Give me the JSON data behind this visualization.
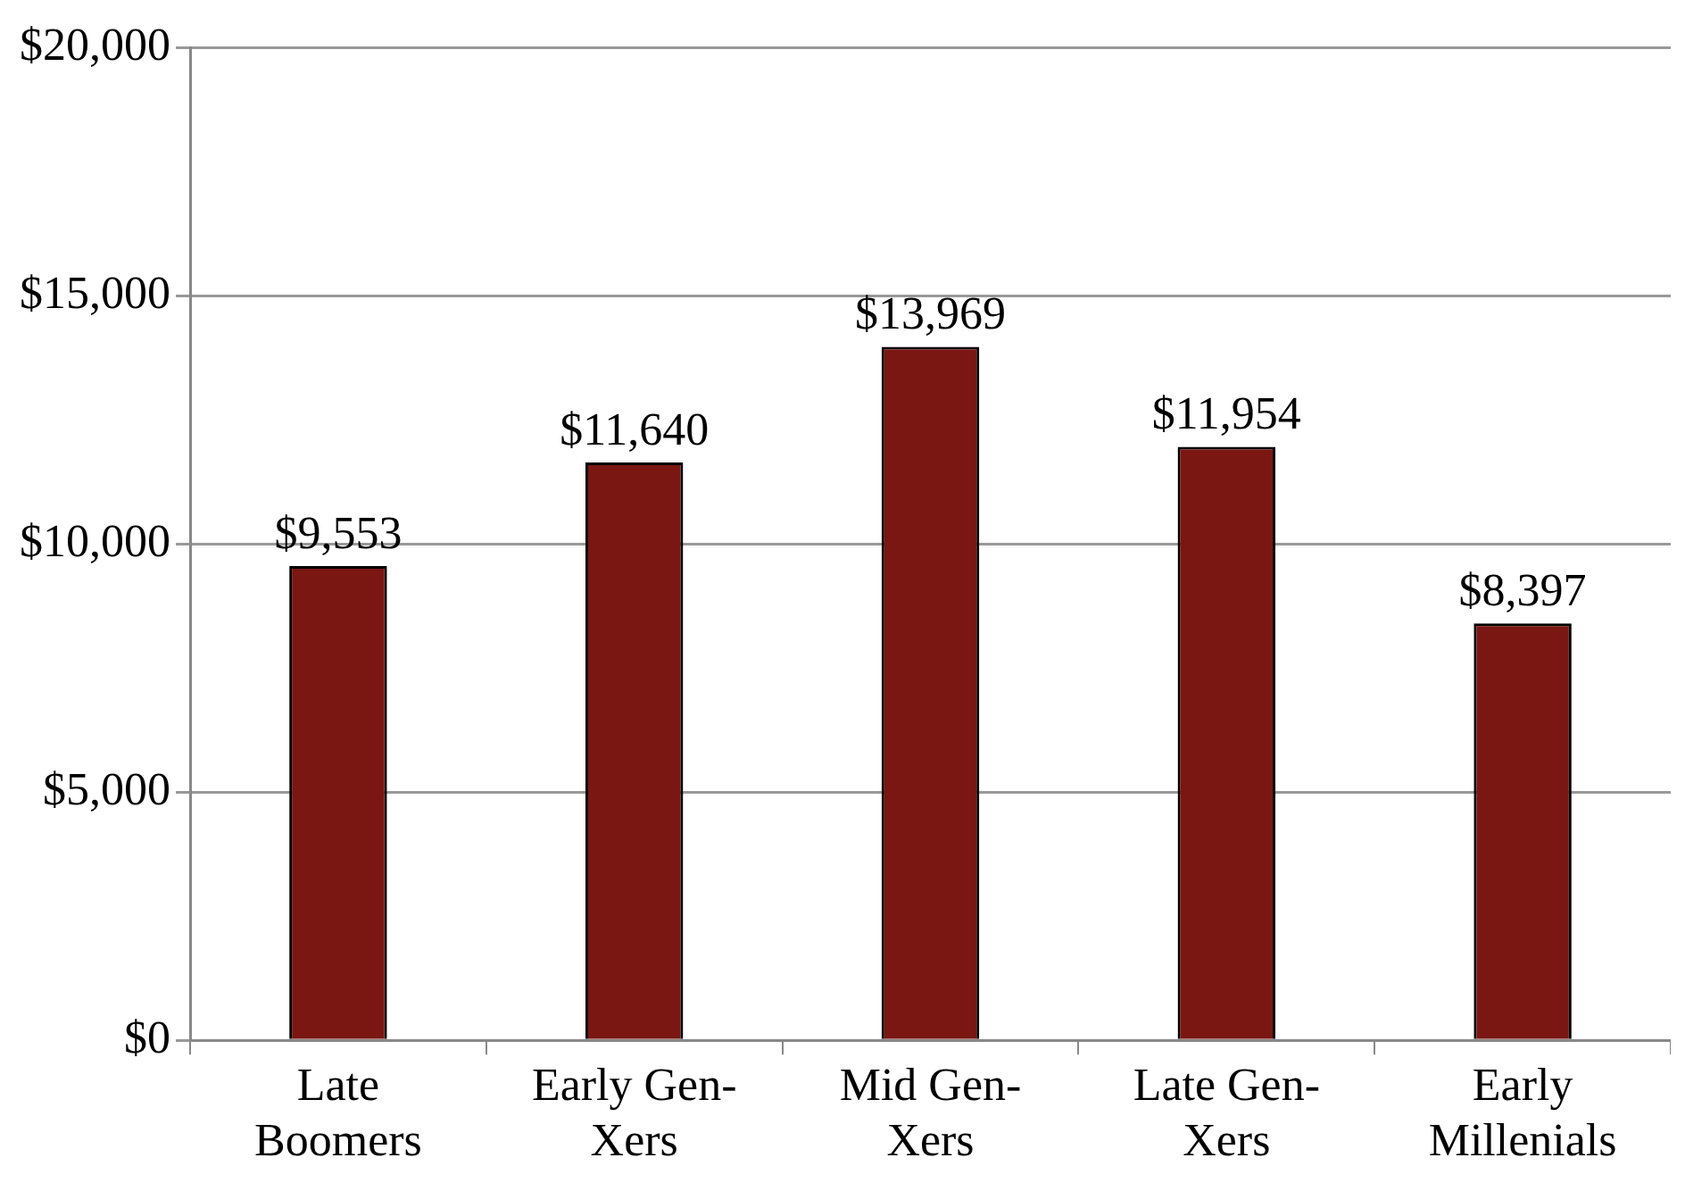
{
  "chart_data": {
    "type": "bar",
    "categories": [
      "Late Boomers",
      "Early Gen-Xers",
      "Mid Gen-Xers",
      "Late Gen-Xers",
      "Early Millenials"
    ],
    "values": [
      9553,
      11640,
      13969,
      11954,
      8397
    ],
    "value_labels": [
      "$9,553",
      "$11,640",
      "$13,969",
      "$11,954",
      "$8,397"
    ],
    "color": "#7a1712",
    "ylim": [
      0,
      20000
    ],
    "yticks": [
      {
        "value": 0,
        "label": "$0"
      },
      {
        "value": 5000,
        "label": "$5,000"
      },
      {
        "value": 10000,
        "label": "$10,000"
      },
      {
        "value": 15000,
        "label": "$15,000"
      },
      {
        "value": 20000,
        "label": "$20,000"
      }
    ],
    "grid": "y",
    "legend": false
  }
}
